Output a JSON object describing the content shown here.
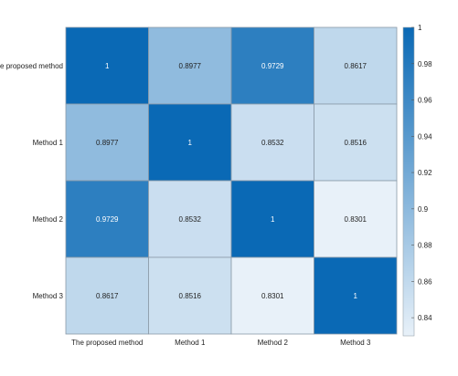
{
  "chart_data": {
    "type": "heatmap",
    "title": "",
    "xlabel": "",
    "ylabel": "",
    "x_categories": [
      "The proposed method",
      "Method 1",
      "Method 2",
      "Method 3"
    ],
    "y_categories": [
      "The proposed method",
      "Method 1",
      "Method 2",
      "Method 3"
    ],
    "values": [
      [
        1,
        0.8977,
        0.9729,
        0.8617
      ],
      [
        0.8977,
        1,
        0.8532,
        0.8516
      ],
      [
        0.9729,
        0.8532,
        1,
        0.8301
      ],
      [
        0.8617,
        0.8516,
        0.8301,
        1
      ]
    ],
    "value_labels": [
      [
        "1",
        "0.8977",
        "0.9729",
        "0.8617"
      ],
      [
        "0.8977",
        "1",
        "0.8532",
        "0.8516"
      ],
      [
        "0.9729",
        "0.8532",
        "1",
        "0.8301"
      ],
      [
        "0.8617",
        "0.8516",
        "0.8301",
        "1"
      ]
    ],
    "colorbar": {
      "range": [
        0.83,
        1
      ],
      "ticks": [
        0.84,
        0.86,
        0.88,
        0.9,
        0.92,
        0.94,
        0.96,
        0.98,
        1
      ],
      "tick_labels": [
        "0.84",
        "0.86",
        "0.88",
        "0.9",
        "0.92",
        "0.94",
        "0.96",
        "0.98",
        "1"
      ],
      "color_low": "#e8f1f9",
      "color_high": "#0a69b5"
    },
    "grid": false,
    "legend": "colorbar-right"
  }
}
